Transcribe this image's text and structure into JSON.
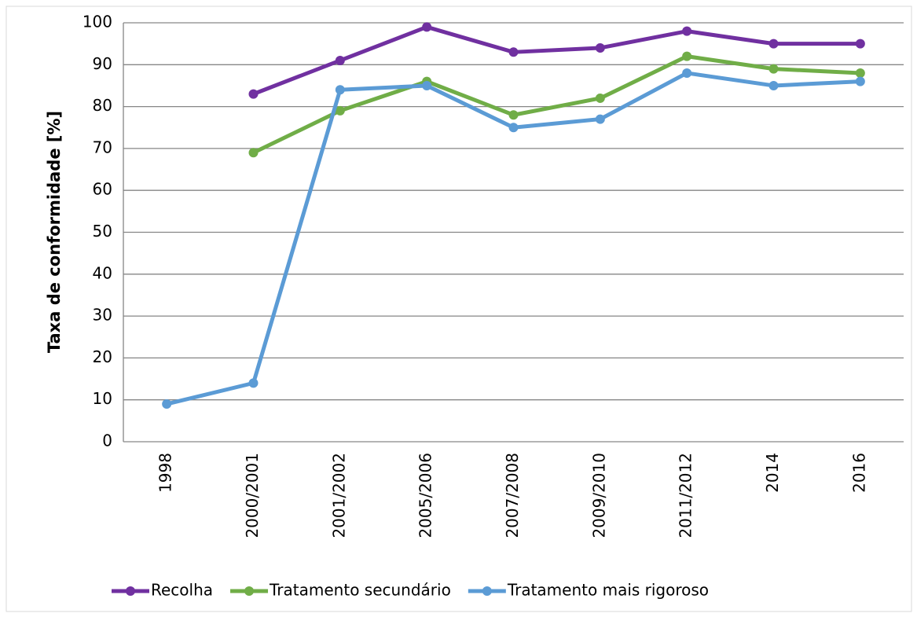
{
  "chart_data": {
    "type": "line",
    "y_label": "Taxa de conformidade [%]",
    "categories": [
      "1998",
      "2000/2001",
      "2001/2002",
      "2005/2006",
      "2007/2008",
      "2009/2010",
      "2011/2012",
      "2014",
      "2016"
    ],
    "series": [
      {
        "name": "Recolha",
        "color": "#7030a0",
        "values": [
          null,
          83,
          91,
          99,
          93,
          94,
          98,
          95,
          95
        ]
      },
      {
        "name": "Tratamento secundário",
        "color": "#70ad47",
        "values": [
          null,
          69,
          79,
          86,
          78,
          82,
          92,
          89,
          88
        ]
      },
      {
        "name": "Tratamento mais rigoroso",
        "color": "#5b9bd5",
        "values": [
          9,
          14,
          84,
          85,
          75,
          77,
          88,
          85,
          86
        ]
      }
    ],
    "ylim": [
      0,
      100
    ],
    "yticks": [
      0,
      10,
      20,
      30,
      40,
      50,
      60,
      70,
      80,
      90,
      100
    ],
    "grid": true
  }
}
